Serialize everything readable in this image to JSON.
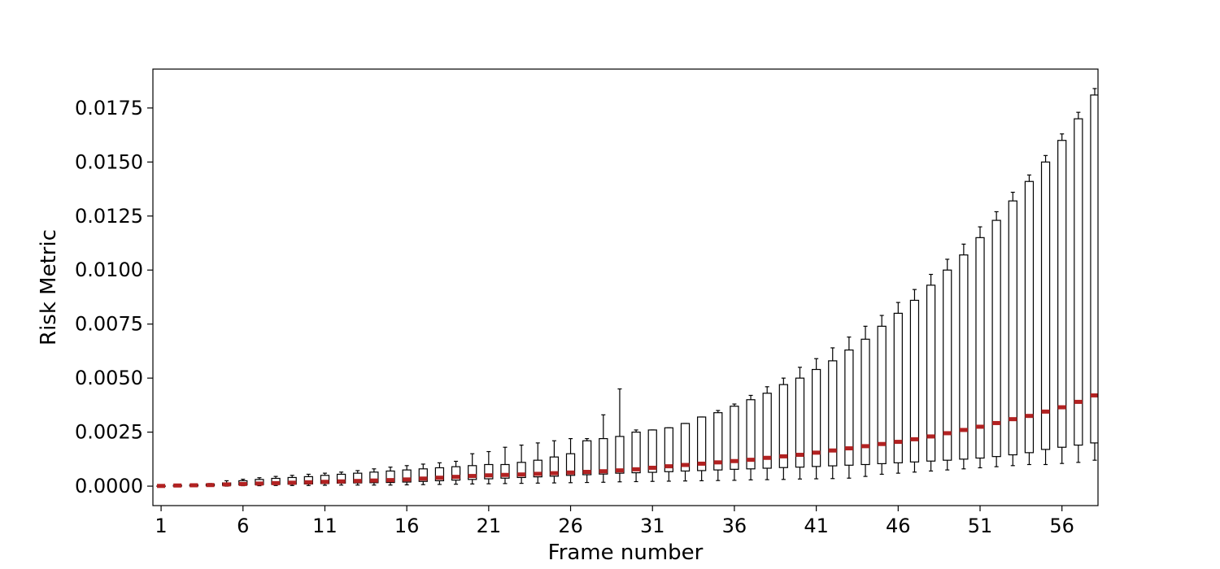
{
  "chart_data": {
    "type": "box",
    "title": "",
    "xlabel": "Frame number",
    "ylabel": "Risk Metric",
    "x_tick_labels": [
      "1",
      "6",
      "11",
      "16",
      "21",
      "26",
      "31",
      "36",
      "41",
      "46",
      "51",
      "56"
    ],
    "y_tick_labels": [
      "0.0000",
      "0.0025",
      "0.0050",
      "0.0075",
      "0.0100",
      "0.0125",
      "0.0150",
      "0.0175"
    ],
    "xlim": [
      0.5,
      58.2
    ],
    "ylim": [
      -0.0009,
      0.0193
    ],
    "grid": false,
    "median_color": "#b22222",
    "frames": [
      1,
      2,
      3,
      4,
      5,
      6,
      7,
      8,
      9,
      10,
      11,
      12,
      13,
      14,
      15,
      16,
      17,
      18,
      19,
      20,
      21,
      22,
      23,
      24,
      25,
      26,
      27,
      28,
      29,
      30,
      31,
      32,
      33,
      34,
      35,
      36,
      37,
      38,
      39,
      40,
      41,
      42,
      43,
      44,
      45,
      46,
      47,
      48,
      49,
      50,
      51,
      52,
      53,
      54,
      55,
      56,
      57,
      58
    ],
    "whisker_low": [
      0,
      0,
      0,
      0,
      0,
      2e-05,
      2e-05,
      3e-05,
      3e-05,
      3e-05,
      4e-05,
      5e-05,
      5e-05,
      5e-05,
      5e-05,
      6e-05,
      7e-05,
      8e-05,
      9e-05,
      0.0001,
      0.00011,
      0.00012,
      0.00013,
      0.00014,
      0.00015,
      0.00016,
      0.00017,
      0.00018,
      0.0002,
      0.00021,
      0.00022,
      0.00023,
      0.00024,
      0.00025,
      0.00026,
      0.00027,
      0.00029,
      0.0003,
      0.00031,
      0.00033,
      0.00034,
      0.00035,
      0.00037,
      0.00045,
      0.00055,
      0.0006,
      0.00065,
      0.0007,
      0.00075,
      0.0008,
      0.00085,
      0.0009,
      0.00095,
      0.001,
      0.001,
      0.00105,
      0.0011,
      0.0012
    ],
    "q1": [
      0,
      0,
      1e-05,
      2e-05,
      4e-05,
      6e-05,
      7e-05,
      8e-05,
      9e-05,
      0.0001,
      0.00012,
      0.00014,
      0.00015,
      0.00016,
      0.00017,
      0.00019,
      0.00022,
      0.00025,
      0.00028,
      0.00031,
      0.00034,
      0.00037,
      0.0004,
      0.00043,
      0.00046,
      0.0005,
      0.00053,
      0.00056,
      0.0006,
      0.00062,
      0.00064,
      0.00067,
      0.0007,
      0.00072,
      0.00075,
      0.00078,
      0.0008,
      0.00083,
      0.00086,
      0.00088,
      0.00091,
      0.00094,
      0.00097,
      0.001,
      0.00104,
      0.00108,
      0.00112,
      0.00116,
      0.0012,
      0.00125,
      0.0013,
      0.00137,
      0.00145,
      0.00155,
      0.0017,
      0.0018,
      0.0019,
      0.002
    ],
    "median": [
      1e-05,
      3e-05,
      4e-05,
      5e-05,
      8e-05,
      0.0001,
      0.00012,
      0.00014,
      0.00016,
      0.00018,
      0.0002,
      0.00022,
      0.00024,
      0.00026,
      0.00028,
      0.00031,
      0.00035,
      0.00039,
      0.00043,
      0.00047,
      0.0005,
      0.00052,
      0.00054,
      0.00057,
      0.0006,
      0.00063,
      0.00066,
      0.00069,
      0.00073,
      0.00078,
      0.00085,
      0.00092,
      0.00098,
      0.00104,
      0.0011,
      0.00116,
      0.00122,
      0.00131,
      0.00138,
      0.00145,
      0.00155,
      0.00165,
      0.00175,
      0.00185,
      0.00195,
      0.00205,
      0.00217,
      0.0023,
      0.00245,
      0.0026,
      0.00275,
      0.00292,
      0.0031,
      0.00325,
      0.00345,
      0.00365,
      0.0039,
      0.0042
    ],
    "q3": [
      1e-05,
      4e-05,
      6e-05,
      9e-05,
      0.00015,
      0.00025,
      0.00031,
      0.00036,
      0.0004,
      0.00044,
      0.0005,
      0.00055,
      0.0006,
      0.00065,
      0.0007,
      0.00075,
      0.0008,
      0.00085,
      0.0009,
      0.00095,
      0.001,
      0.001,
      0.0011,
      0.0012,
      0.00135,
      0.0015,
      0.0021,
      0.0022,
      0.0023,
      0.0025,
      0.0026,
      0.0027,
      0.0029,
      0.0032,
      0.0034,
      0.0037,
      0.004,
      0.0043,
      0.0047,
      0.005,
      0.0054,
      0.0058,
      0.0063,
      0.0068,
      0.0074,
      0.008,
      0.0086,
      0.0093,
      0.01,
      0.0107,
      0.0115,
      0.0123,
      0.0132,
      0.0141,
      0.015,
      0.016,
      0.017,
      0.0181
    ],
    "whisker_high": [
      1e-05,
      4e-05,
      7e-05,
      0.00012,
      0.00025,
      0.00032,
      0.00039,
      0.00045,
      0.0005,
      0.00055,
      0.0006,
      0.00065,
      0.00072,
      0.0008,
      0.00088,
      0.00095,
      0.00102,
      0.00108,
      0.00115,
      0.0015,
      0.0016,
      0.0018,
      0.0019,
      0.002,
      0.0021,
      0.0022,
      0.0022,
      0.0033,
      0.0045,
      0.0026,
      0.0026,
      0.0027,
      0.0029,
      0.0032,
      0.0035,
      0.0038,
      0.0042,
      0.0046,
      0.005,
      0.0055,
      0.0059,
      0.0064,
      0.0069,
      0.0074,
      0.0079,
      0.0085,
      0.0091,
      0.0098,
      0.0105,
      0.0112,
      0.012,
      0.0127,
      0.0136,
      0.0144,
      0.0153,
      0.0163,
      0.0173,
      0.0184
    ]
  }
}
